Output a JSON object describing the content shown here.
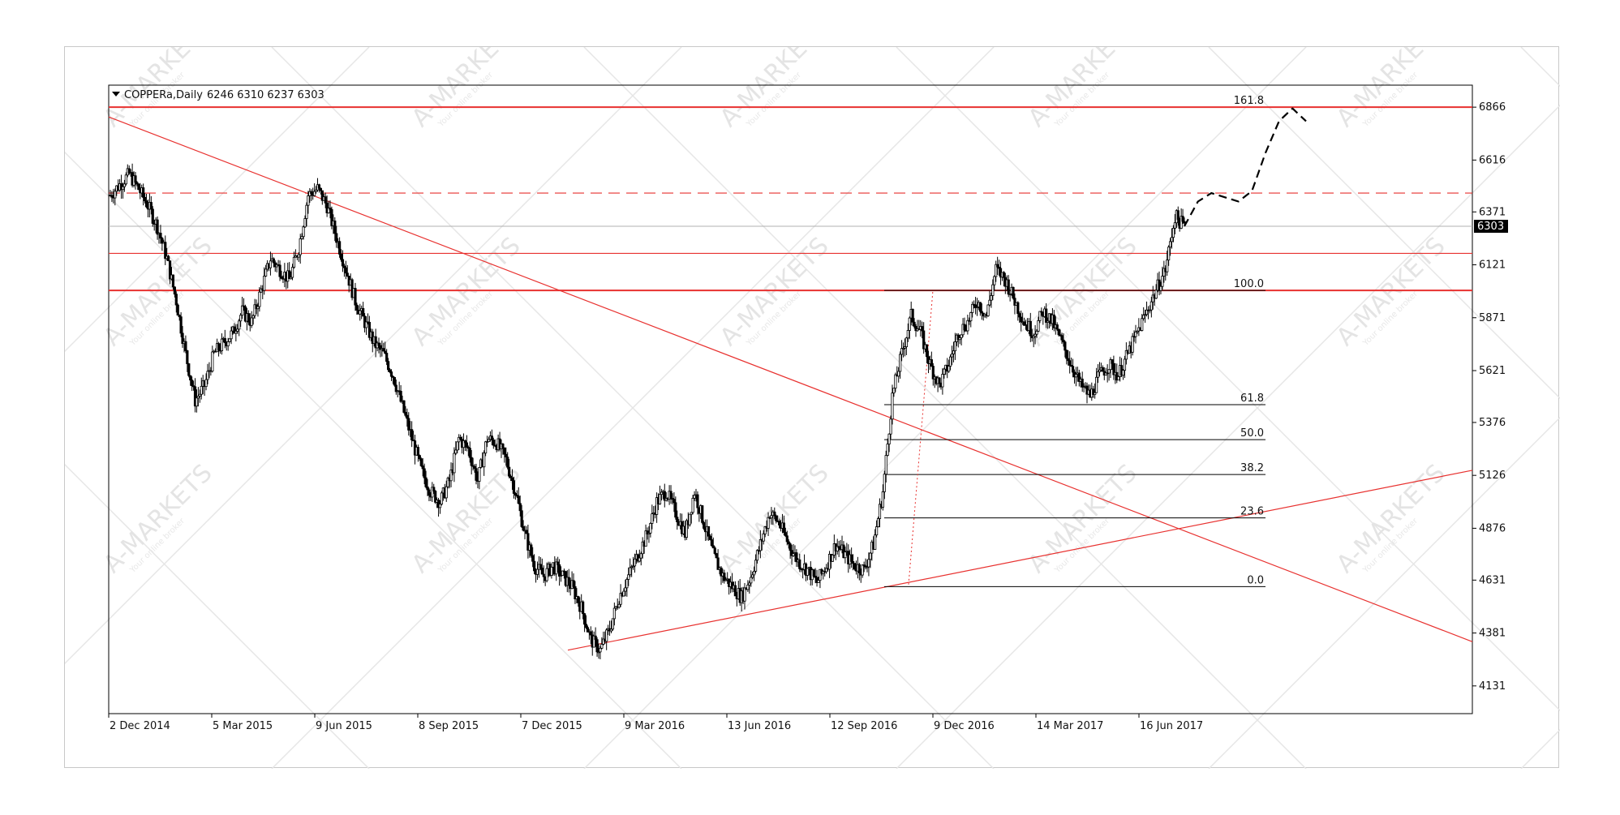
{
  "header": {
    "symbol_label": "COPPERa,Daily",
    "ohlc": "6246 6310 6237 6303"
  },
  "chart_data": {
    "type": "line",
    "symbol": "COPPERa",
    "timeframe": "Daily",
    "title": "COPPERa,Daily",
    "ohlc_last": {
      "open": 6246,
      "high": 6310,
      "low": 6237,
      "close": 6303
    },
    "current_price_label": "6303",
    "ylim": [
      4000,
      6970
    ],
    "y_ticks": [
      4131,
      4381,
      4631,
      4876,
      5126,
      5376,
      5621,
      5871,
      6121,
      6371,
      6616,
      6866
    ],
    "y_tick_labels": [
      "4131",
      "4381",
      "4631",
      "4876",
      "5126",
      "5376",
      "5621",
      "5871",
      "6121",
      "6371",
      "6616",
      "6866"
    ],
    "x_tick_labels": [
      "2 Dec 2014",
      "5 Mar 2015",
      "9 Jun 2015",
      "8 Sep 2015",
      "7 Dec 2015",
      "9 Mar 2016",
      "13 Jun 2016",
      "12 Sep 2016",
      "9 Dec 2016",
      "14 Mar 2017",
      "16 Jun 2017"
    ],
    "series": [
      {
        "values": [
          6450,
          6500,
          6550,
          6480,
          6400,
          6300,
          6150,
          5950,
          5700,
          5480,
          5550,
          5700,
          5750,
          5800,
          5900,
          5850,
          6000,
          6150,
          6100,
          6050,
          6200,
          6450,
          6480,
          6400,
          6250,
          6100,
          5950,
          5850,
          5750,
          5700,
          5600,
          5450,
          5300,
          5150,
          5050,
          5000,
          5100,
          5300,
          5250,
          5100,
          5300,
          5280,
          5200,
          5050,
          4850,
          4700,
          4650,
          4700,
          4650,
          4600,
          4500,
          4350,
          4300,
          4400,
          4550,
          4650,
          4750,
          4850,
          5000,
          5050,
          4950,
          4850,
          5050,
          4900,
          4750,
          4650,
          4600,
          4550,
          4650,
          4800,
          4950,
          4900,
          4800,
          4720,
          4680,
          4620,
          4700,
          4800,
          4750,
          4700,
          4680,
          4800,
          5050,
          5500,
          5700,
          5880,
          5800,
          5650,
          5550,
          5650,
          5800,
          5850,
          5950,
          5880,
          6100,
          6050,
          5950,
          5850,
          5800,
          5900,
          5850,
          5750,
          5650,
          5550,
          5500,
          5600,
          5650,
          5600,
          5700,
          5800,
          5900,
          6000,
          6100,
          6350,
          6303
        ]
      }
    ],
    "fibonacci": [
      {
        "label": "161.8",
        "price": 6866
      },
      {
        "label": "100.0",
        "price": 6000
      },
      {
        "label": "61.8",
        "price": 5460
      },
      {
        "label": "50.0",
        "price": 5295
      },
      {
        "label": "38.2",
        "price": 5130
      },
      {
        "label": "23.6",
        "price": 4925
      },
      {
        "label": "0.0",
        "price": 4600
      }
    ],
    "horizontal_levels": [
      {
        "price": 6866,
        "style": "solid"
      },
      {
        "price": 6460,
        "style": "dashed"
      },
      {
        "price": 6303,
        "style": "thin-gray"
      },
      {
        "price": 6175,
        "style": "solid"
      },
      {
        "price": 6000,
        "style": "solid"
      }
    ],
    "projection": [
      6303,
      6420,
      6460,
      6440,
      6420,
      6470,
      6650,
      6800,
      6860,
      6800
    ],
    "watermark_text": "A-MARKETS",
    "watermark_tagline": "Your online broker",
    "colors": {
      "level": "#e8312f",
      "candle": "#000000",
      "fib": "#000000",
      "grid_bg": "#ffffff",
      "price_label_bg": "#000000"
    }
  }
}
